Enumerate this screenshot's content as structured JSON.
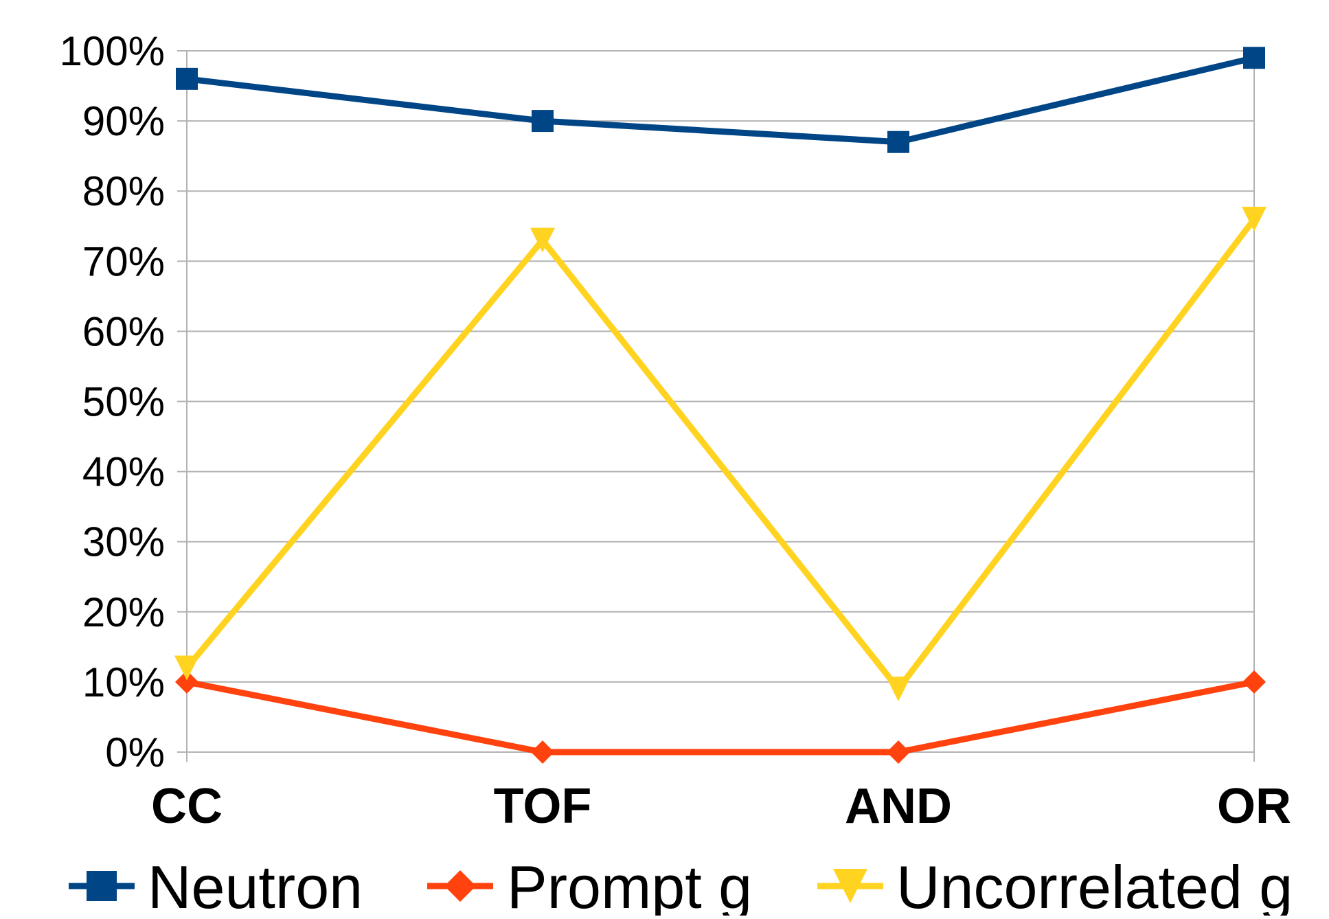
{
  "chart_data": {
    "type": "line",
    "title": "",
    "xlabel": "",
    "ylabel": "",
    "categories": [
      "CC",
      "TOF",
      "AND",
      "OR"
    ],
    "ylim": [
      0,
      100
    ],
    "y_ticks": [
      "0%",
      "10%",
      "20%",
      "30%",
      "40%",
      "50%",
      "60%",
      "70%",
      "80%",
      "90%",
      "100%"
    ],
    "grid": true,
    "legend_position": "bottom",
    "series": [
      {
        "name": "Neutron",
        "values": [
          96,
          90,
          87,
          99
        ],
        "color": "#004586",
        "marker": "square"
      },
      {
        "name": "Prompt g",
        "values": [
          10,
          0,
          0,
          10
        ],
        "color": "#ff420e",
        "marker": "diamond"
      },
      {
        "name": "Uncorrelated g",
        "values": [
          12,
          73,
          9,
          76
        ],
        "color": "#ffd320",
        "marker": "triangle-down"
      }
    ]
  }
}
